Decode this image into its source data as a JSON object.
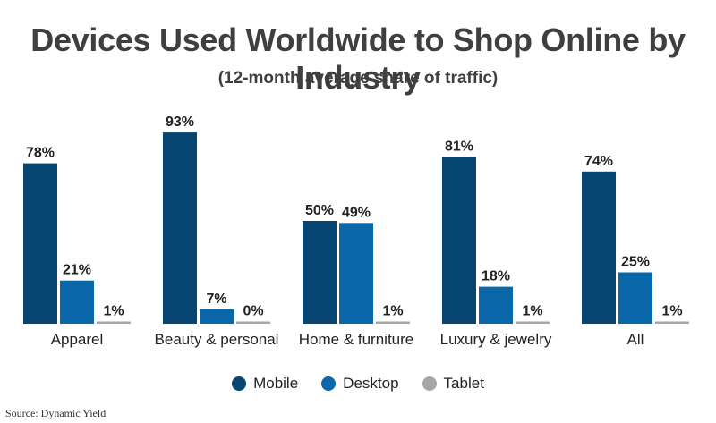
{
  "colors": {
    "mobile": "#074673",
    "desktop": "#0a67aa",
    "tablet": "#a6a6a6"
  },
  "chart_data": {
    "type": "bar",
    "title": "Devices Used Worldwide to Shop Online by Industry",
    "subtitle": "(12-month average share of traffic)",
    "categories": [
      "Apparel",
      "Beauty & personal",
      "Home & furniture",
      "Luxury & jewelry",
      "All"
    ],
    "series": [
      {
        "name": "Mobile",
        "values": [
          78,
          93,
          50,
          81,
          74
        ],
        "labels": [
          "78%",
          "93%",
          "50%",
          "81%",
          "74%"
        ]
      },
      {
        "name": "Desktop",
        "values": [
          21,
          7,
          49,
          18,
          25
        ],
        "labels": [
          "21%",
          "7%",
          "49%",
          "18%",
          "25%"
        ]
      },
      {
        "name": "Tablet",
        "values": [
          1,
          0,
          1,
          1,
          1
        ],
        "labels": [
          "1%",
          "0%",
          "1%",
          "1%",
          "1%"
        ]
      }
    ],
    "ylim": [
      0,
      100
    ],
    "grid": false,
    "legend": "bottom-center",
    "source": "Source: Dynamic Yield"
  }
}
